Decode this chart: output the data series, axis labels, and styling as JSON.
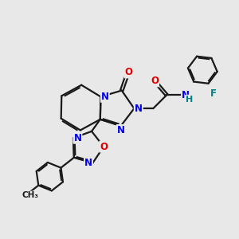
{
  "bg": "#e8e8e8",
  "bc": "#1a1a1a",
  "nc": "#0000ee",
  "oc": "#dd0000",
  "fc": "#008080",
  "hc": "#008080",
  "lw": 1.6,
  "fs": 8.5,
  "xlim": [
    0,
    10
  ],
  "ylim": [
    0,
    10
  ]
}
